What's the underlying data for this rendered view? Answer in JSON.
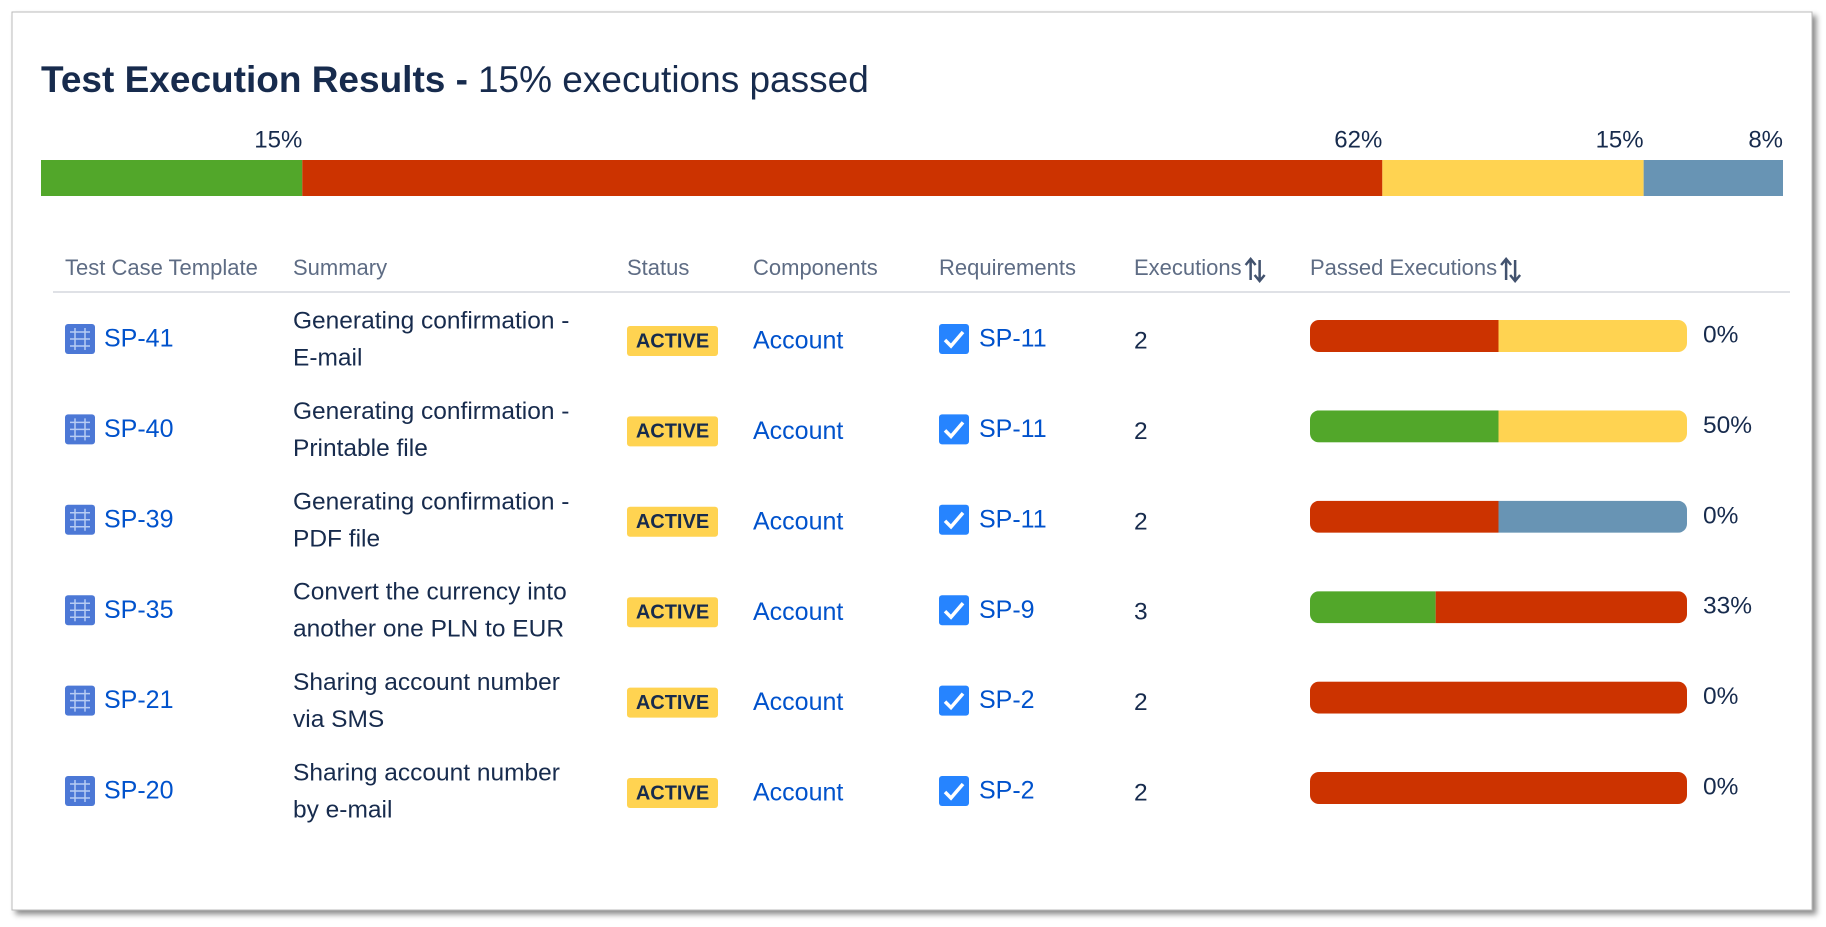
{
  "header": {
    "title": "Test Execution Results -",
    "subtitle": "15% executions passed"
  },
  "summary_bar": {
    "segments": [
      {
        "value": 15,
        "label": "15%",
        "color": "#52a72a"
      },
      {
        "value": 62,
        "label": "62%",
        "color": "#cc3300"
      },
      {
        "value": 15,
        "label": "15%",
        "color": "#ffd351"
      },
      {
        "value": 8,
        "label": "8%",
        "color": "#6894b4"
      }
    ]
  },
  "table": {
    "columns": [
      "Test Case Template",
      "Summary",
      "Status",
      "Components",
      "Requirements",
      "Executions",
      "Passed Executions"
    ],
    "rows": [
      {
        "key": "SP-41",
        "summary": [
          "Generating confirmation -",
          "E-mail"
        ],
        "status": "ACTIVE",
        "component": "Account",
        "requirement": "SP-11",
        "executions": 2,
        "passed": "0%",
        "bar": [
          {
            "value": 1,
            "color": "#cc3300"
          },
          {
            "value": 1,
            "color": "#ffd351"
          }
        ]
      },
      {
        "key": "SP-40",
        "summary": [
          "Generating confirmation -",
          "Printable file"
        ],
        "status": "ACTIVE",
        "component": "Account",
        "requirement": "SP-11",
        "executions": 2,
        "passed": "50%",
        "bar": [
          {
            "value": 1,
            "color": "#52a72a"
          },
          {
            "value": 1,
            "color": "#ffd351"
          }
        ]
      },
      {
        "key": "SP-39",
        "summary": [
          "Generating confirmation -",
          "PDF file"
        ],
        "status": "ACTIVE",
        "component": "Account",
        "requirement": "SP-11",
        "executions": 2,
        "passed": "0%",
        "bar": [
          {
            "value": 1,
            "color": "#cc3300"
          },
          {
            "value": 1,
            "color": "#6894b4"
          }
        ]
      },
      {
        "key": "SP-35",
        "summary": [
          "Convert the currency into",
          "another one PLN to EUR"
        ],
        "status": "ACTIVE",
        "component": "Account",
        "requirement": "SP-9",
        "executions": 3,
        "passed": "33%",
        "bar": [
          {
            "value": 1,
            "color": "#52a72a"
          },
          {
            "value": 2,
            "color": "#cc3300"
          }
        ]
      },
      {
        "key": "SP-21",
        "summary": [
          "Sharing account number",
          "via SMS"
        ],
        "status": "ACTIVE",
        "component": "Account",
        "requirement": "SP-2",
        "executions": 2,
        "passed": "0%",
        "bar": [
          {
            "value": 2,
            "color": "#cc3300"
          }
        ]
      },
      {
        "key": "SP-20",
        "summary": [
          "Sharing account number",
          "by e-mail"
        ],
        "status": "ACTIVE",
        "component": "Account",
        "requirement": "SP-2",
        "executions": 2,
        "passed": "0%",
        "bar": [
          {
            "value": 2,
            "color": "#cc3300"
          }
        ]
      }
    ]
  }
}
